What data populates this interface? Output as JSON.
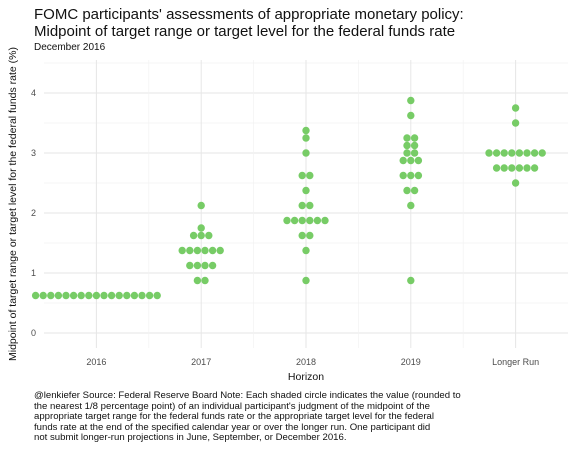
{
  "title_lines": [
    "FOMC participants' assessments of appropriate monetary policy:",
    "Midpoint of target range or target level for the federal funds rate"
  ],
  "subtitle": "December 2016",
  "caption_lines": [
    "@lenkiefer Source: Federal Reserve Board Note: Each shaded circle indicates the value (rounded to",
    "the nearest 1/8 percentage point) of an individual participant's judgment of the midpoint of the",
    "appropriate target range for the federal funds rate or the appropriate target level for the federal",
    "funds rate at the end of the specified calendar year or over the longer run. One participant did",
    "not submit longer-run projections in June, September, or December 2016."
  ],
  "chart_data": {
    "type": "scatter",
    "style": "dot plot",
    "xlabel": "Horizon",
    "ylabel": "Midpoint of target range or target level for the federal funds rate (%)",
    "categories": [
      "2016",
      "2017",
      "2018",
      "2019",
      "Longer Run"
    ],
    "y_ticks": [
      0,
      1,
      2,
      3,
      4
    ],
    "ylim": [
      -0.25,
      4.55
    ],
    "grid": true,
    "dot_color": "#77cc66",
    "series": [
      {
        "x": "2016",
        "values": [
          0.625,
          0.625,
          0.625,
          0.625,
          0.625,
          0.625,
          0.625,
          0.625,
          0.625,
          0.625,
          0.625,
          0.625,
          0.625,
          0.625,
          0.625,
          0.625,
          0.625
        ]
      },
      {
        "x": "2017",
        "values": [
          0.875,
          0.875,
          1.125,
          1.125,
          1.125,
          1.125,
          1.375,
          1.375,
          1.375,
          1.375,
          1.375,
          1.375,
          1.625,
          1.625,
          1.625,
          1.75,
          2.125
        ]
      },
      {
        "x": "2018",
        "values": [
          0.875,
          1.375,
          1.625,
          1.625,
          1.875,
          1.875,
          1.875,
          1.875,
          1.875,
          1.875,
          2.125,
          2.125,
          2.375,
          2.625,
          2.625,
          3.0,
          3.25,
          3.375
        ]
      },
      {
        "x": "2019",
        "values": [
          0.875,
          2.125,
          2.375,
          2.375,
          2.625,
          2.625,
          2.625,
          2.875,
          2.875,
          2.875,
          3.0,
          3.0,
          3.125,
          3.125,
          3.25,
          3.25,
          3.625,
          3.875
        ]
      },
      {
        "x": "Longer Run",
        "values": [
          2.5,
          2.75,
          2.75,
          2.75,
          2.75,
          2.75,
          2.75,
          3.0,
          3.0,
          3.0,
          3.0,
          3.0,
          3.0,
          3.0,
          3.0,
          3.5,
          3.75
        ]
      }
    ]
  }
}
